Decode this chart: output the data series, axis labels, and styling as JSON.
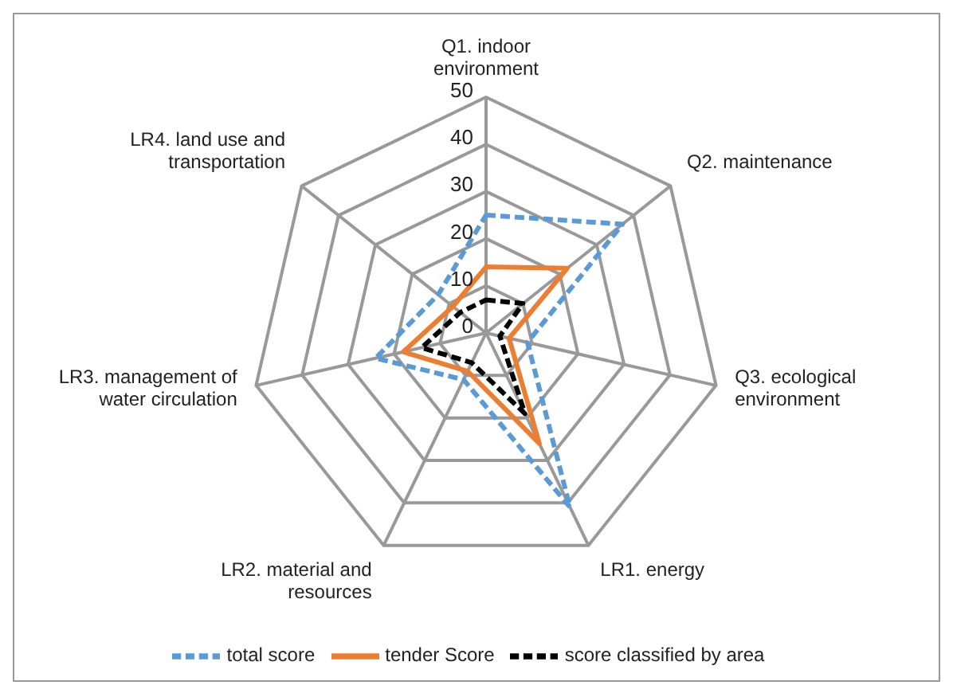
{
  "chart_data": {
    "type": "radar",
    "categories": [
      "Q1. indoor environment",
      "Q2. maintenance",
      "Q3. ecological environment",
      "LR1. energy",
      "LR2. material and resources",
      "LR3. management of water circulation",
      "LR4. land use and transportation"
    ],
    "series": [
      {
        "name": "total score",
        "color": "#5b9bd5",
        "line_style": "dashed",
        "values": [
          25,
          37,
          9,
          41,
          11,
          24,
          13
        ]
      },
      {
        "name": "tender Score",
        "color": "#ed7d31",
        "line_style": "solid",
        "values": [
          14,
          22,
          5,
          26,
          9,
          18,
          9
        ]
      },
      {
        "name": "score classified by area",
        "color": "#000000",
        "line_style": "dashed",
        "values": [
          7,
          10,
          3,
          19,
          7,
          14,
          7
        ]
      }
    ],
    "ylim": [
      0,
      50
    ],
    "yticks": [
      0,
      10,
      20,
      30,
      40,
      50
    ],
    "grid": true,
    "legend": "bottom",
    "marker": "none"
  }
}
